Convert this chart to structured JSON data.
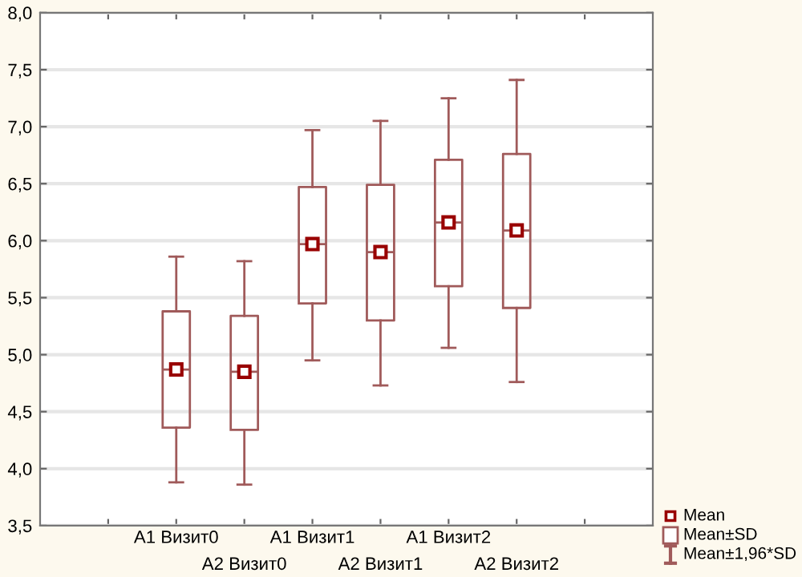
{
  "chart_data": {
    "type": "box",
    "categories": [
      null,
      "A1 Визит0",
      "A2 Визит0",
      "A1 Визит1",
      "A2 Визит1",
      "A1 Визит2",
      "A2 Визит2",
      null
    ],
    "series": [
      {
        "color": "#a05a5a",
        "boxes": [
          null,
          {
            "low": 3.88,
            "q1": 4.36,
            "median": 4.87,
            "q3": 5.38,
            "high": 5.86,
            "mean": 4.87
          },
          {
            "low": 3.86,
            "q1": 4.34,
            "median": 4.85,
            "q3": 5.34,
            "high": 5.82,
            "mean": 4.85
          },
          {
            "low": 4.95,
            "q1": 5.45,
            "median": 5.97,
            "q3": 6.47,
            "high": 6.97,
            "mean": 5.97
          },
          {
            "low": 4.73,
            "q1": 5.3,
            "median": 5.9,
            "q3": 6.49,
            "high": 7.05,
            "mean": 5.9
          },
          {
            "low": 5.06,
            "q1": 5.6,
            "median": 6.16,
            "q3": 6.71,
            "high": 7.25,
            "mean": 6.16
          },
          {
            "low": 4.76,
            "q1": 5.41,
            "median": 6.09,
            "q3": 6.76,
            "high": 7.41,
            "mean": 6.09
          },
          null
        ]
      }
    ],
    "ylim": [
      3.5,
      8.0
    ],
    "yticks": [
      {
        "value": 3.5,
        "label": "3,5"
      },
      {
        "value": 4.0,
        "label": "4,0"
      },
      {
        "value": 4.5,
        "label": "4,5"
      },
      {
        "value": 5.0,
        "label": "5,0"
      },
      {
        "value": 5.5,
        "label": "5,5"
      },
      {
        "value": 6.0,
        "label": "6,0"
      },
      {
        "value": 6.5,
        "label": "6,5"
      },
      {
        "value": 7.0,
        "label": "7,0"
      },
      {
        "value": 7.5,
        "label": "7,5"
      },
      {
        "value": 8.0,
        "label": "8,0"
      }
    ],
    "grid": "y",
    "annotations": [
      "Mean",
      "Mean±SD",
      "Mean±1,96*SD"
    ]
  }
}
